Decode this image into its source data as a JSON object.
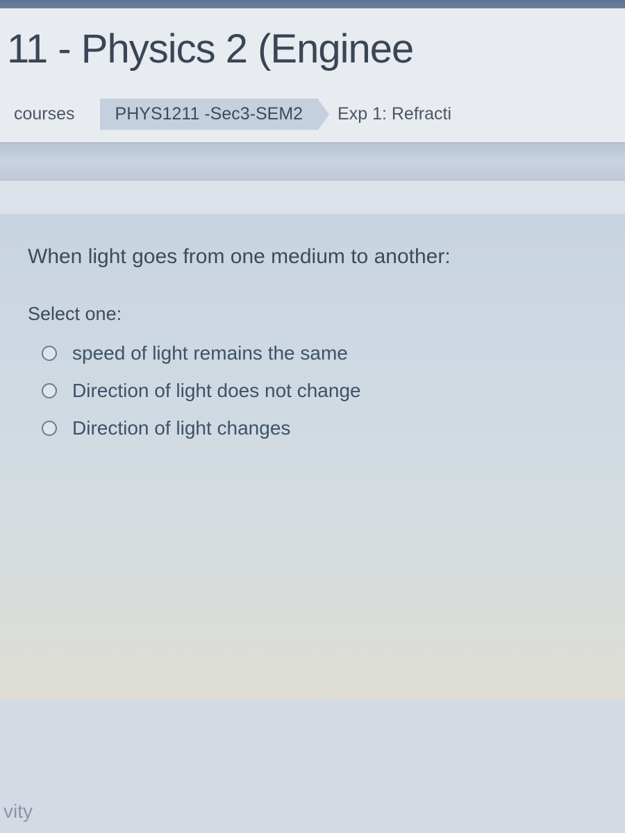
{
  "header": {
    "course_title": "11 - Physics 2 (Enginee"
  },
  "breadcrumb": {
    "items": [
      {
        "label": "courses",
        "highlighted": false
      },
      {
        "label": "PHYS1211 -Sec3-SEM2",
        "highlighted": true
      },
      {
        "label": "Exp 1: Refracti",
        "highlighted": false
      }
    ]
  },
  "question": {
    "prompt": "When light goes from one medium to another:",
    "select_label": "Select one:",
    "options": [
      {
        "text": "speed of light remains the same"
      },
      {
        "text": "Direction of light does not change"
      },
      {
        "text": "Direction of light changes"
      }
    ]
  },
  "footer": {
    "partial_text": "vity"
  },
  "colors": {
    "top_bar": "#5b7494",
    "header_bg": "#e8ebef",
    "title_color": "#3a4556",
    "breadcrumb_highlight": "#c5d0df",
    "breadcrumb_text": "#4a5668",
    "question_text": "#3d4a5c",
    "option_text": "#3d5268",
    "radio_border": "#6b7a8f"
  }
}
